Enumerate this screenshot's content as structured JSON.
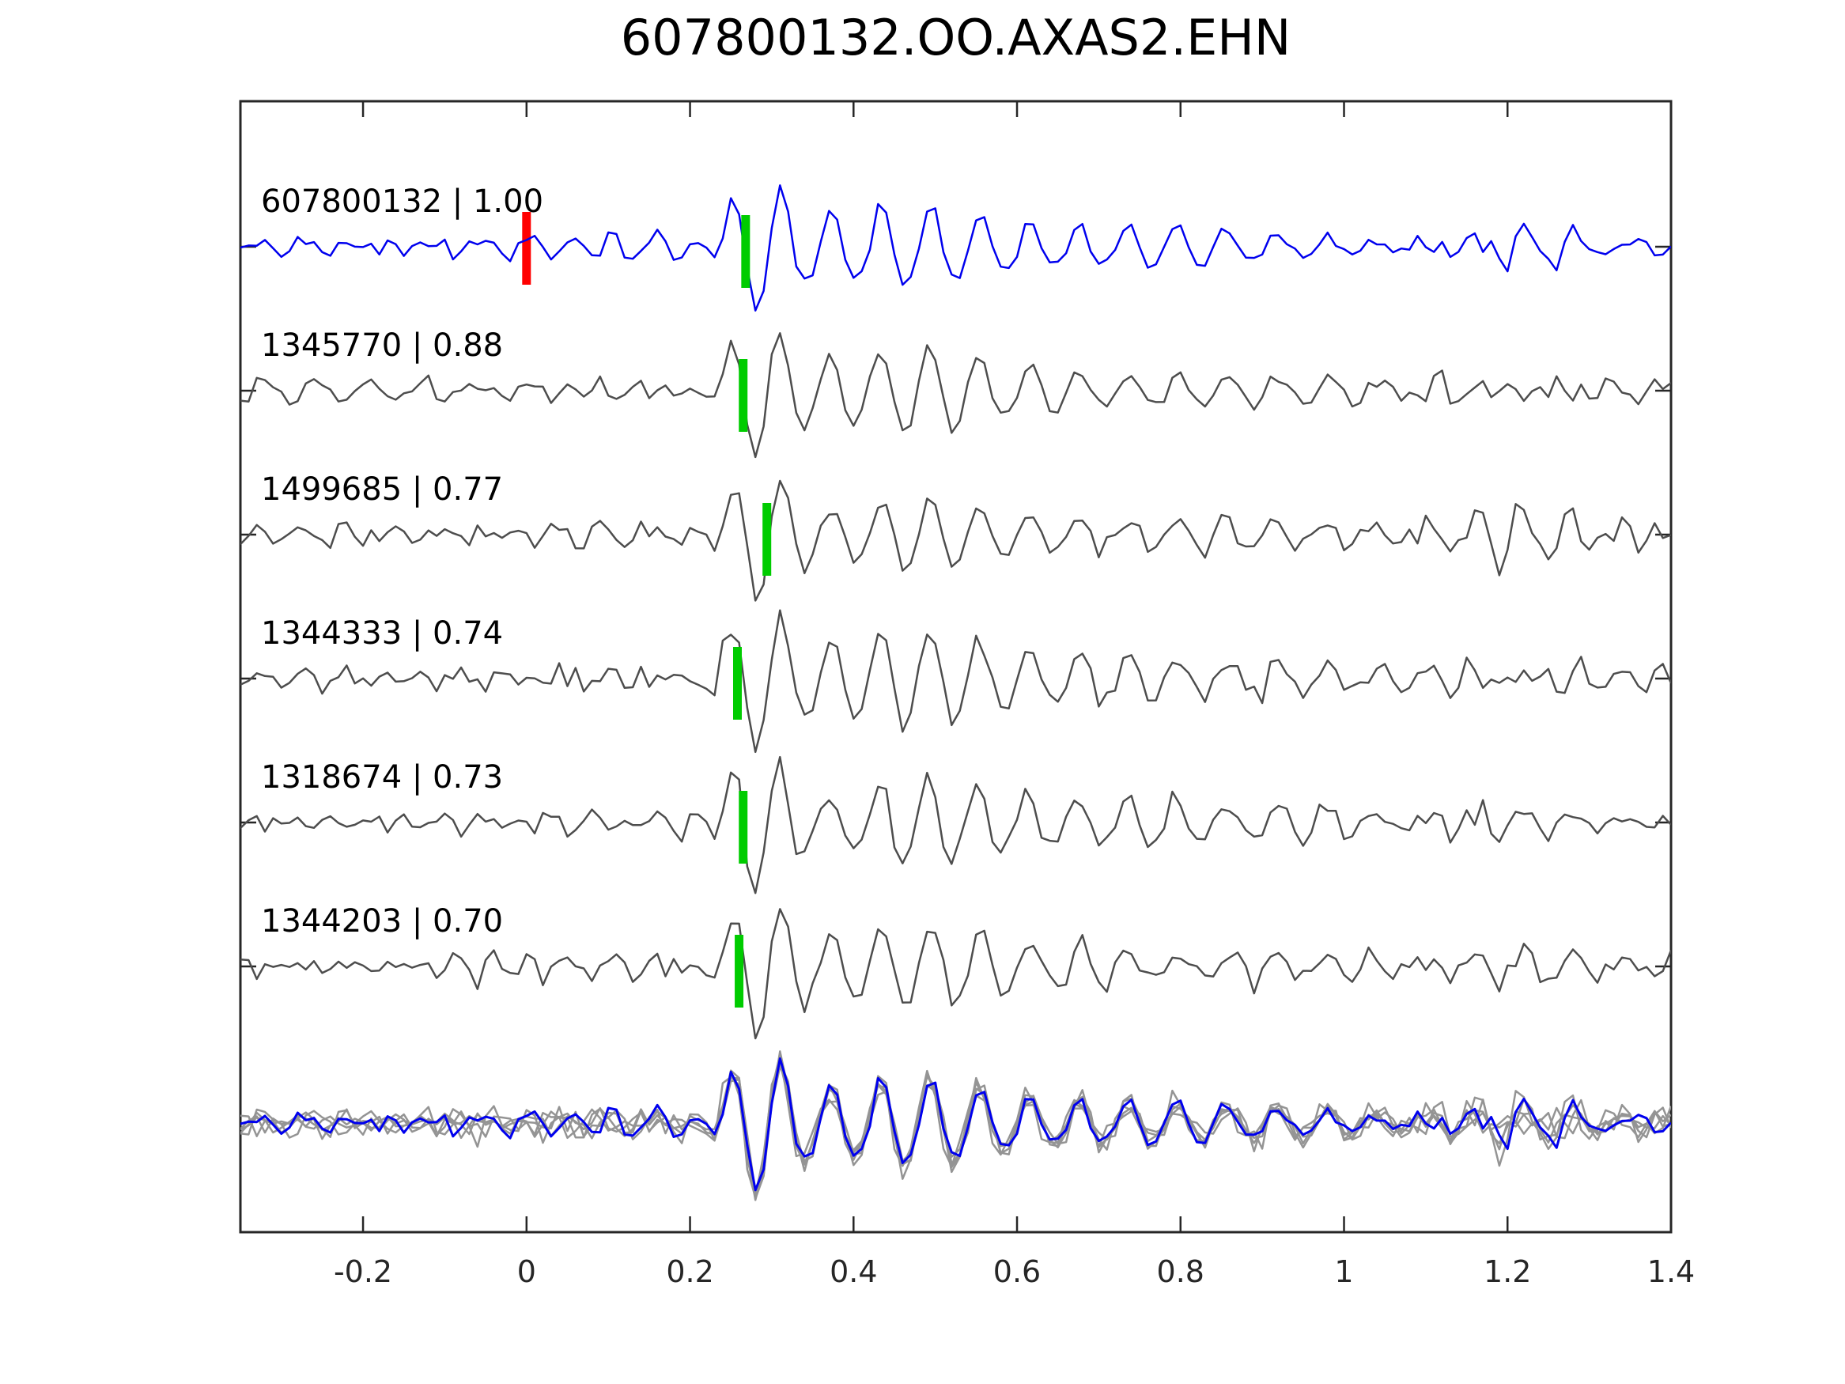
{
  "title": "607800132.OO.AXAS2.EHN",
  "colors": {
    "template_trace": "#0000ee",
    "match_trace": "#4d4d4d",
    "overlay_gray_trace": "#949494",
    "pick_marker": "#00cc00",
    "origin_marker": "#ff0000",
    "axis": "#262626",
    "text": "#000000",
    "background": "#ffffff"
  },
  "axis": {
    "xlim": [
      -0.35,
      1.4
    ],
    "xticks": [
      {
        "value": -0.2,
        "label": "-0.2"
      },
      {
        "value": 0,
        "label": "0"
      },
      {
        "value": 0.2,
        "label": "0.2"
      },
      {
        "value": 0.4,
        "label": "0.4"
      },
      {
        "value": 0.6,
        "label": "0.6"
      },
      {
        "value": 0.8,
        "label": "0.8"
      },
      {
        "value": 1,
        "label": "1"
      },
      {
        "value": 1.2,
        "label": "1.2"
      },
      {
        "value": 1.4,
        "label": "1.4"
      }
    ],
    "ytick_labels_visible": false
  },
  "traces": [
    {
      "id": "607800132",
      "cc": "1.00",
      "label": "607800132 | 1.00",
      "role": "template",
      "pick_time": 0.268,
      "origin_marker_time": 0.0
    },
    {
      "id": "1345770",
      "cc": "0.88",
      "label": "1345770 | 0.88",
      "role": "match",
      "pick_time": 0.265
    },
    {
      "id": "1499685",
      "cc": "0.77",
      "label": "1499685 | 0.77",
      "role": "match",
      "pick_time": 0.294
    },
    {
      "id": "1344333",
      "cc": "0.74",
      "label": "1344333 | 0.74",
      "role": "match",
      "pick_time": 0.258
    },
    {
      "id": "1318674",
      "cc": "0.73",
      "label": "1318674 | 0.73",
      "role": "match",
      "pick_time": 0.265
    },
    {
      "id": "1344203",
      "cc": "0.70",
      "label": "1344203 | 0.70",
      "role": "match",
      "pick_time": 0.26
    }
  ],
  "overlay_row": {
    "description": "all matched waveforms superimposed, template highlighted",
    "gray_trace_ids": [
      "1345770",
      "1499685",
      "1344333",
      "1318674",
      "1344203"
    ],
    "highlight_trace_id": "607800132"
  },
  "chart_data": {
    "type": "line",
    "title": "607800132.OO.AXAS2.EHN",
    "xlabel": "",
    "ylabel": "",
    "xlim": [
      -0.35,
      1.4
    ],
    "xtick_values": [
      -0.2,
      0,
      0.2,
      0.4,
      0.6,
      0.8,
      1,
      1.2,
      1.4
    ],
    "grid": false,
    "legend": false,
    "series": [
      {
        "name": "607800132",
        "correlation": 1.0,
        "color": "#0000ee",
        "pick_time": 0.268,
        "origin_marker_time": 0.0,
        "row": 1
      },
      {
        "name": "1345770",
        "correlation": 0.88,
        "color": "#4d4d4d",
        "pick_time": 0.265,
        "row": 2
      },
      {
        "name": "1499685",
        "correlation": 0.77,
        "color": "#4d4d4d",
        "pick_time": 0.294,
        "row": 3
      },
      {
        "name": "1344333",
        "correlation": 0.74,
        "color": "#4d4d4d",
        "pick_time": 0.258,
        "row": 4
      },
      {
        "name": "1318674",
        "correlation": 0.73,
        "color": "#4d4d4d",
        "pick_time": 0.265,
        "row": 5
      },
      {
        "name": "1344203",
        "correlation": 0.7,
        "color": "#4d4d4d",
        "pick_time": 0.26,
        "row": 6
      }
    ],
    "bottom_row": "overlay of all 6 aligned waveforms (5 gray + template in blue)",
    "note": "seismic waveform cross-correlation figure; waveform sample values not labeled on axes, arrival burst at ~0.25-0.30 s with decaying coda"
  }
}
